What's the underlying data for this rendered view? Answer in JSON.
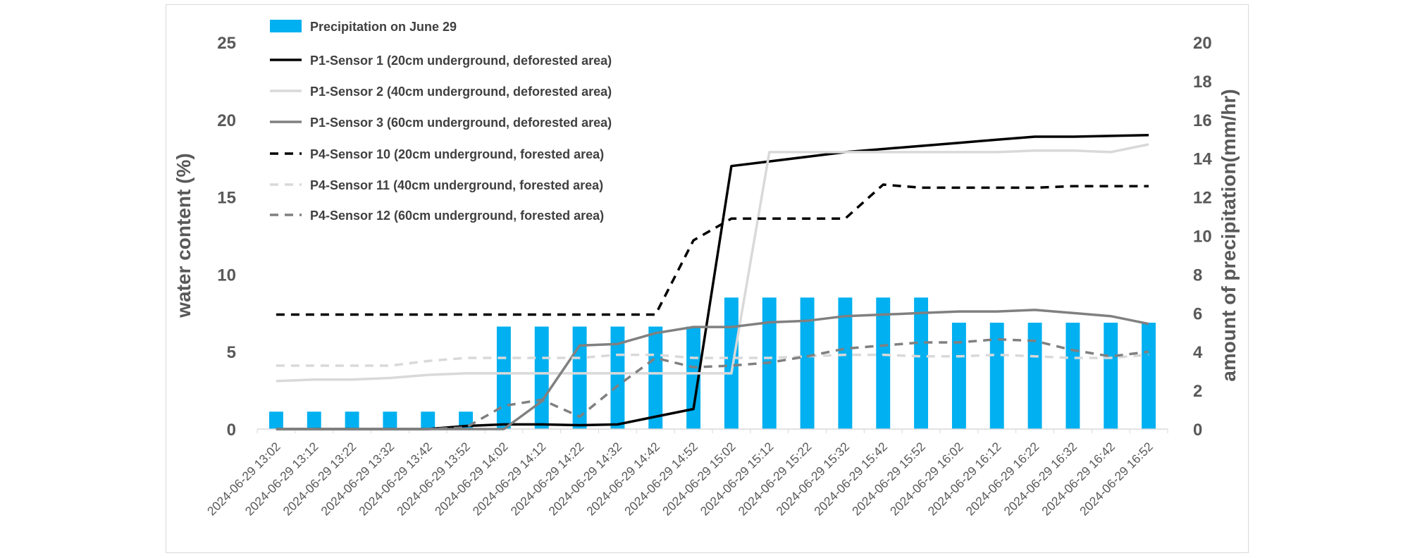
{
  "chart_data": {
    "type": "bar+line",
    "ylabel_left": "water content (%)",
    "ylabel_right": "amount of precipitation(mm/hr)",
    "ylim_left": [
      0,
      25
    ],
    "ylim_right": [
      0,
      20
    ],
    "yticks_left": [
      "0",
      "5",
      "10",
      "15",
      "20",
      "25"
    ],
    "yticks_right": [
      "0",
      "2",
      "4",
      "6",
      "8",
      "10",
      "12",
      "14",
      "16",
      "18",
      "20"
    ],
    "grid": false,
    "legend_position": "top-left",
    "categories": [
      "2024-06-29 13:02",
      "2024-06-29 13:12",
      "2024-06-29 13:22",
      "2024-06-29 13:32",
      "2024-06-29 13:42",
      "2024-06-29 13:52",
      "2024-06-29 14:02",
      "2024-06-29 14:12",
      "2024-06-29 14:22",
      "2024-06-29 14:32",
      "2024-06-29 14:42",
      "2024-06-29 14:52",
      "2024-06-29 15:02",
      "2024-06-29 15:12",
      "2024-06-29 15:22",
      "2024-06-29 15:32",
      "2024-06-29 15:42",
      "2024-06-29 15:52",
      "2024-06-29 16:02",
      "2024-06-29 16:12",
      "2024-06-29 16:22",
      "2024-06-29 16:32",
      "2024-06-29 16:42",
      "2024-06-29 16:52"
    ],
    "bar_series": {
      "name": "Precipitation on June 29",
      "axis": "right",
      "color": "#00b0f0",
      "values": [
        0.9,
        0.9,
        0.9,
        0.9,
        0.9,
        0.9,
        5.3,
        5.3,
        5.3,
        5.3,
        5.3,
        5.3,
        6.8,
        6.8,
        6.8,
        6.8,
        6.8,
        6.8,
        5.5,
        5.5,
        5.5,
        5.5,
        5.5,
        5.5
      ]
    },
    "line_series": [
      {
        "name": "P1-Sensor 1 (20cm underground, deforested area)",
        "color": "#000000",
        "dash": "solid",
        "values": [
          0,
          0,
          0,
          0,
          0,
          0.2,
          0.3,
          0.3,
          0.25,
          0.3,
          0.8,
          1.3,
          17.0,
          17.3,
          17.6,
          17.9,
          18.1,
          18.3,
          18.5,
          18.7,
          18.9,
          18.9,
          18.95,
          19.0
        ]
      },
      {
        "name": "P1-Sensor 2 (40cm underground, deforested area)",
        "color": "#d9d9d9",
        "dash": "solid",
        "values": [
          3.1,
          3.2,
          3.2,
          3.3,
          3.5,
          3.6,
          3.6,
          3.6,
          3.6,
          3.6,
          3.6,
          3.6,
          3.6,
          17.9,
          17.9,
          17.9,
          17.9,
          17.9,
          17.9,
          17.9,
          18.0,
          18.0,
          17.9,
          18.4
        ]
      },
      {
        "name": "P1-Sensor 3 (60cm underground, deforested area)",
        "color": "#808080",
        "dash": "solid",
        "values": [
          0,
          0,
          0,
          0,
          0,
          0,
          0,
          1.8,
          5.4,
          5.5,
          6.2,
          6.6,
          6.6,
          6.9,
          7.0,
          7.3,
          7.4,
          7.5,
          7.6,
          7.6,
          7.7,
          7.5,
          7.3,
          6.8
        ]
      },
      {
        "name": "P4-Sensor 10 (20cm underground, forested area)",
        "color": "#000000",
        "dash": "dashed",
        "values": [
          7.4,
          7.4,
          7.4,
          7.4,
          7.4,
          7.4,
          7.4,
          7.4,
          7.4,
          7.4,
          7.4,
          12.2,
          13.6,
          13.6,
          13.6,
          13.6,
          15.8,
          15.6,
          15.6,
          15.6,
          15.6,
          15.7,
          15.7,
          15.7
        ]
      },
      {
        "name": "P4-Sensor 11 (40cm underground, forested area)",
        "color": "#d9d9d9",
        "dash": "dashed",
        "values": [
          4.1,
          4.1,
          4.1,
          4.1,
          4.4,
          4.6,
          4.6,
          4.6,
          4.6,
          4.8,
          4.8,
          4.6,
          4.6,
          4.6,
          4.7,
          4.8,
          4.8,
          4.7,
          4.7,
          4.8,
          4.7,
          4.6,
          4.6,
          4.8
        ]
      },
      {
        "name": "P4-Sensor 12 (60cm underground, forested area)",
        "color": "#808080",
        "dash": "dashed",
        "values": [
          0,
          0,
          0,
          0,
          0,
          0.1,
          1.5,
          1.9,
          0.8,
          2.8,
          4.6,
          4.0,
          4.1,
          4.3,
          4.7,
          5.2,
          5.4,
          5.6,
          5.6,
          5.8,
          5.7,
          5.1,
          4.7,
          5.0
        ]
      }
    ]
  }
}
